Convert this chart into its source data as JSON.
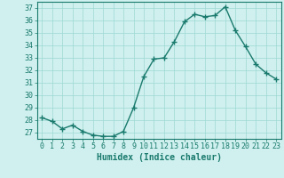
{
  "x": [
    0,
    1,
    2,
    3,
    4,
    5,
    6,
    7,
    8,
    9,
    10,
    11,
    12,
    13,
    14,
    15,
    16,
    17,
    18,
    19,
    20,
    21,
    22,
    23
  ],
  "y": [
    28.2,
    27.9,
    27.3,
    27.6,
    27.1,
    26.8,
    26.7,
    26.7,
    27.1,
    29.0,
    31.5,
    32.9,
    33.0,
    34.3,
    35.9,
    36.5,
    36.3,
    36.4,
    37.1,
    35.2,
    33.9,
    32.5,
    31.8,
    31.3
  ],
  "line_color": "#1a7a6e",
  "marker": "+",
  "marker_size": 4,
  "marker_linewidth": 1.0,
  "bg_color": "#cff0ee",
  "grid_color": "#9dd8d4",
  "xlabel": "Humidex (Indice chaleur)",
  "ylim": [
    26.5,
    37.5
  ],
  "xlim": [
    -0.5,
    23.5
  ],
  "yticks": [
    27,
    28,
    29,
    30,
    31,
    32,
    33,
    34,
    35,
    36,
    37
  ],
  "xticks": [
    0,
    1,
    2,
    3,
    4,
    5,
    6,
    7,
    8,
    9,
    10,
    11,
    12,
    13,
    14,
    15,
    16,
    17,
    18,
    19,
    20,
    21,
    22,
    23
  ],
  "tick_color": "#1a7a6e",
  "label_color": "#1a7a6e",
  "axis_color": "#1a7a6e",
  "font_size": 6,
  "xlabel_fontsize": 7,
  "linewidth": 1.0
}
